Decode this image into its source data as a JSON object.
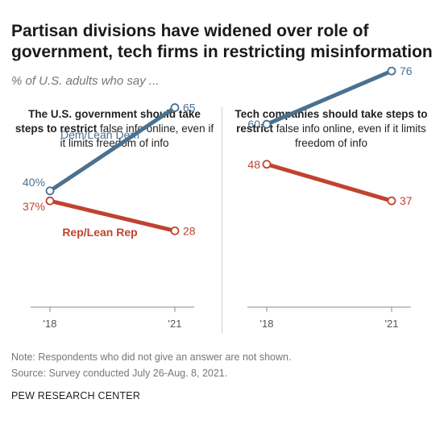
{
  "title": "Partisan divisions have widened over role of government, tech firms in restricting misinformation",
  "subtitle": "% of U.S. adults who say ...",
  "colors": {
    "dem": "#4a7190",
    "rep": "#c0432f",
    "axis": "#888888"
  },
  "chart_data": [
    {
      "type": "line",
      "title_bold": "The U.S. government should take steps to restrict",
      "title_rest": "false info online, even if it limits freedom of info",
      "categories": [
        "'18",
        "'21"
      ],
      "series": [
        {
          "name": "Dem/Lean Dem",
          "values": [
            40,
            65
          ],
          "labels": [
            "40%",
            "65"
          ]
        },
        {
          "name": "Rep/Lean Rep",
          "values": [
            37,
            28
          ],
          "labels": [
            "37%",
            "28"
          ]
        }
      ]
    },
    {
      "type": "line",
      "title_bold": "Tech companies should take steps to restrict",
      "title_rest": "false info online, even if it limits freedom of info",
      "categories": [
        "'18",
        "'21"
      ],
      "series": [
        {
          "name": "",
          "values": [
            60,
            76
          ],
          "labels": [
            "60",
            "76"
          ]
        },
        {
          "name": "",
          "values": [
            48,
            37
          ],
          "labels": [
            "48",
            "37"
          ]
        }
      ]
    }
  ],
  "note": "Note: Respondents who did not give an answer are not shown.",
  "source": "Source: Survey conducted July 26-Aug. 8, 2021.",
  "org": "PEW RESEARCH CENTER"
}
